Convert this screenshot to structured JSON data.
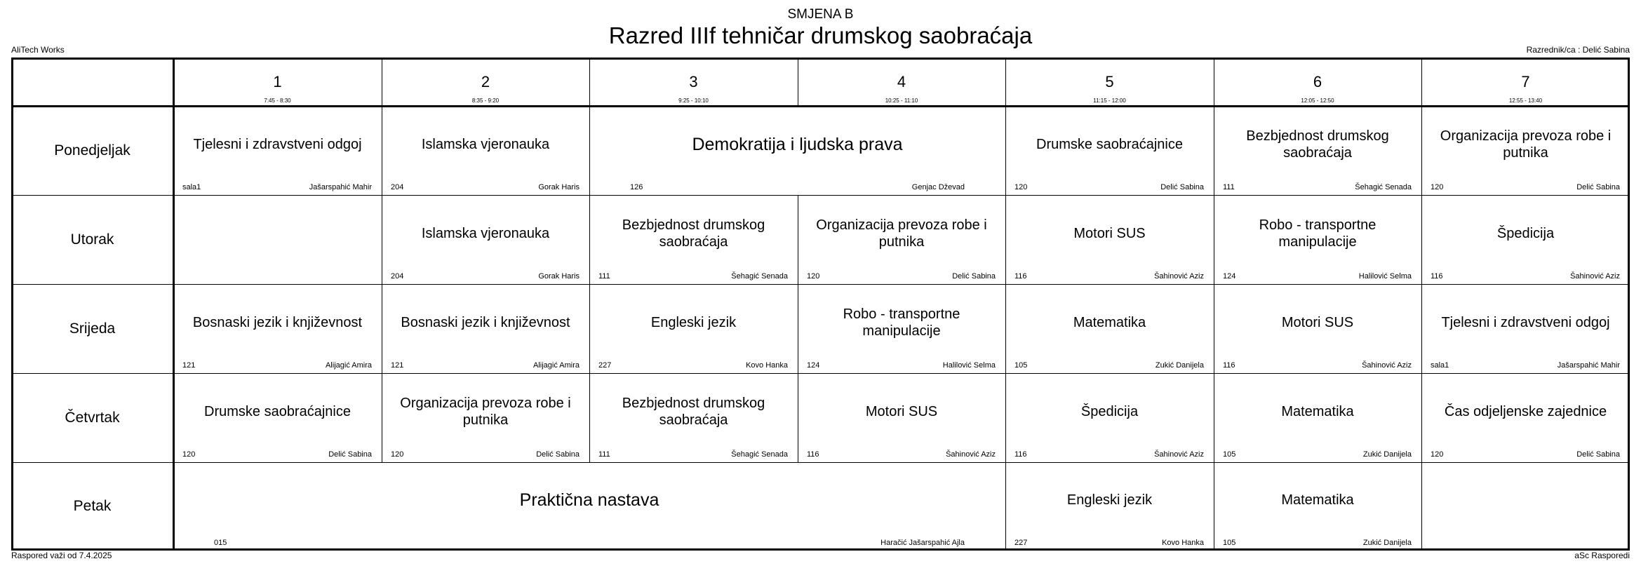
{
  "header": {
    "shift": "SMJENA B",
    "title": "Razred IIIf tehničar drumskog saobraćaja",
    "school": "AliTech Works",
    "class_teacher": "Razrednik/ca : Delić Sabina"
  },
  "footer": {
    "valid_from": "Raspored važi od 7.4.2025",
    "generator": "aSc Rasporedi"
  },
  "periods": [
    {
      "num": "1",
      "time": "7:45 - 8:30"
    },
    {
      "num": "2",
      "time": "8:35 - 9:20"
    },
    {
      "num": "3",
      "time": "9:25 - 10:10"
    },
    {
      "num": "4",
      "time": "10:25 - 11:10"
    },
    {
      "num": "5",
      "time": "11:15 - 12:00"
    },
    {
      "num": "6",
      "time": "12:05 - 12:50"
    },
    {
      "num": "7",
      "time": "12:55 - 13:40"
    }
  ],
  "days": [
    {
      "name": "Ponedjeljak",
      "lessons": [
        {
          "span": 1,
          "subject": "Tjelesni i zdravstveni odgoj",
          "room": "sala1",
          "teacher": "Jašarspahić Mahir"
        },
        {
          "span": 1,
          "subject": "Islamska vjeronauka",
          "room": "204",
          "teacher": "Gorak Haris"
        },
        {
          "span": 2,
          "subject": "Demokratija i ljudska prava",
          "room": "126",
          "teacher": "Genjac Dževad"
        },
        {
          "span": 1,
          "subject": "Drumske saobraćajnice",
          "room": "120",
          "teacher": "Delić Sabina"
        },
        {
          "span": 1,
          "subject": "Bezbjednost drumskog saobraćaja",
          "room": "111",
          "teacher": "Šehagić Senada"
        },
        {
          "span": 1,
          "subject": "Organizacija prevoza robe i putnika",
          "room": "120",
          "teacher": "Delić Sabina"
        }
      ]
    },
    {
      "name": "Utorak",
      "lessons": [
        {
          "span": 1,
          "subject": "",
          "room": "",
          "teacher": ""
        },
        {
          "span": 1,
          "subject": "Islamska vjeronauka",
          "room": "204",
          "teacher": "Gorak Haris"
        },
        {
          "span": 1,
          "subject": "Bezbjednost drumskog saobraćaja",
          "room": "111",
          "teacher": "Šehagić Senada"
        },
        {
          "span": 1,
          "subject": "Organizacija prevoza robe i putnika",
          "room": "120",
          "teacher": "Delić Sabina"
        },
        {
          "span": 1,
          "subject": "Motori SUS",
          "room": "116",
          "teacher": "Šahinović Aziz"
        },
        {
          "span": 1,
          "subject": "Robo - transportne manipulacije",
          "room": "124",
          "teacher": "Halilović Selma"
        },
        {
          "span": 1,
          "subject": "Špedicija",
          "room": "116",
          "teacher": "Šahinović Aziz"
        }
      ]
    },
    {
      "name": "Srijeda",
      "lessons": [
        {
          "span": 1,
          "subject": "Bosnaski jezik i književnost",
          "room": "121",
          "teacher": "Alijagić Amira"
        },
        {
          "span": 1,
          "subject": "Bosnaski jezik i književnost",
          "room": "121",
          "teacher": "Alijagić Amira"
        },
        {
          "span": 1,
          "subject": "Engleski jezik",
          "room": "227",
          "teacher": "Kovo Hanka"
        },
        {
          "span": 1,
          "subject": "Robo - transportne manipulacije",
          "room": "124",
          "teacher": "Halilović Selma"
        },
        {
          "span": 1,
          "subject": "Matematika",
          "room": "105",
          "teacher": "Zukić Danijela"
        },
        {
          "span": 1,
          "subject": "Motori SUS",
          "room": "116",
          "teacher": "Šahinović Aziz"
        },
        {
          "span": 1,
          "subject": "Tjelesni i zdravstveni odgoj",
          "room": "sala1",
          "teacher": "Jašarspahić Mahir"
        }
      ]
    },
    {
      "name": "Četvrtak",
      "lessons": [
        {
          "span": 1,
          "subject": "Drumske saobraćajnice",
          "room": "120",
          "teacher": "Delić Sabina"
        },
        {
          "span": 1,
          "subject": "Organizacija prevoza robe i putnika",
          "room": "120",
          "teacher": "Delić Sabina"
        },
        {
          "span": 1,
          "subject": "Bezbjednost drumskog saobraćaja",
          "room": "111",
          "teacher": "Šehagić Senada"
        },
        {
          "span": 1,
          "subject": "Motori SUS",
          "room": "116",
          "teacher": "Šahinović Aziz"
        },
        {
          "span": 1,
          "subject": "Špedicija",
          "room": "116",
          "teacher": "Šahinović Aziz"
        },
        {
          "span": 1,
          "subject": "Matematika",
          "room": "105",
          "teacher": "Zukić Danijela"
        },
        {
          "span": 1,
          "subject": "Čas odjeljenske zajednice",
          "room": "120",
          "teacher": "Delić Sabina"
        }
      ]
    },
    {
      "name": "Petak",
      "lessons": [
        {
          "span": 4,
          "subject": "Praktična nastava",
          "room": "015",
          "teacher": "Haračić Jašarspahić Ajla"
        },
        {
          "span": 1,
          "subject": "Engleski jezik",
          "room": "227",
          "teacher": "Kovo Hanka"
        },
        {
          "span": 1,
          "subject": "Matematika",
          "room": "105",
          "teacher": "Zukić Danijela"
        },
        {
          "span": 1,
          "subject": "",
          "room": "",
          "teacher": ""
        }
      ]
    }
  ]
}
